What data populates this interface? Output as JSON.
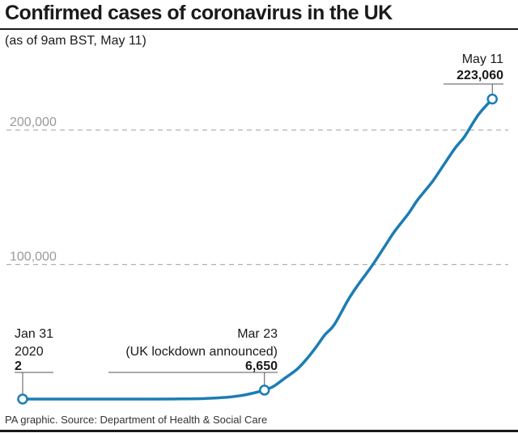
{
  "title": "Confirmed cases of coronavirus in the UK",
  "subtitle": "(as of 9am BST, May 11)",
  "source": "PA graphic. Source: Department of Health & Social Care",
  "colors": {
    "line": "#1b7db5",
    "grid": "#b0b0b0",
    "text": "#1a1a1a"
  },
  "chart_data": {
    "type": "line",
    "title": "Confirmed cases of coronavirus in the UK",
    "subtitle": "(as of 9am BST, May 11)",
    "xlabel": "",
    "ylabel": "",
    "xlim": [
      "2020-01-31",
      "2020-05-11"
    ],
    "ylim": [
      0,
      230000
    ],
    "grid": "horizontal dashed",
    "y_ticks": [
      {
        "value": 100000,
        "label": "100,000"
      },
      {
        "value": 200000,
        "label": "200,000"
      }
    ],
    "series": [
      {
        "points": [
          [
            "2020-01-31",
            2
          ],
          [
            "2020-02-15",
            9
          ],
          [
            "2020-02-29",
            23
          ],
          [
            "2020-03-05",
            115
          ],
          [
            "2020-03-10",
            373
          ],
          [
            "2020-03-15",
            1372
          ],
          [
            "2020-03-18",
            2626
          ],
          [
            "2020-03-20",
            3983
          ],
          [
            "2020-03-23",
            6650
          ],
          [
            "2020-03-25",
            9529
          ],
          [
            "2020-03-27",
            14543
          ],
          [
            "2020-03-30",
            22141
          ],
          [
            "2020-04-01",
            29474
          ],
          [
            "2020-04-03",
            38168
          ],
          [
            "2020-04-05",
            47806
          ],
          [
            "2020-04-07",
            55242
          ],
          [
            "2020-04-10",
            73758
          ],
          [
            "2020-04-12",
            84279
          ],
          [
            "2020-04-15",
            98476
          ],
          [
            "2020-04-18",
            114217
          ],
          [
            "2020-04-20",
            124743
          ],
          [
            "2020-04-23",
            138078
          ],
          [
            "2020-04-25",
            148377
          ],
          [
            "2020-04-28",
            161145
          ],
          [
            "2020-04-30",
            171253
          ],
          [
            "2020-05-03",
            186599
          ],
          [
            "2020-05-05",
            194990
          ],
          [
            "2020-05-08",
            211364
          ],
          [
            "2020-05-11",
            223060
          ]
        ]
      }
    ],
    "annotations": [
      {
        "date": "2020-01-31",
        "value": 2,
        "lines": [
          "Jan 31",
          "2020"
        ],
        "value_label": "2"
      },
      {
        "date": "2020-03-23",
        "value": 6650,
        "lines": [
          "Mar 23",
          "(UK lockdown announced)"
        ],
        "value_label": "6,650"
      },
      {
        "date": "2020-05-11",
        "value": 223060,
        "lines": [
          "May 11"
        ],
        "value_label": "223,060"
      }
    ]
  }
}
